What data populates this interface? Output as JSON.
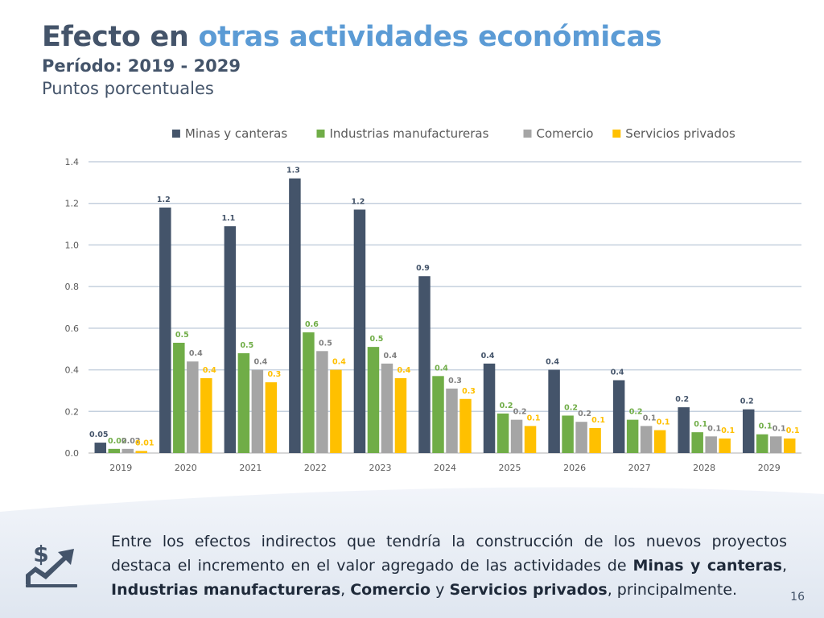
{
  "header": {
    "title_prefix": "Efecto en ",
    "title_accent": "otras actividades económicas",
    "subtitle": "Período: 2019 - 2029",
    "units": "Puntos porcentuales"
  },
  "chart_data": {
    "type": "bar",
    "categories": [
      "2019",
      "2020",
      "2021",
      "2022",
      "2023",
      "2024",
      "2025",
      "2026",
      "2027",
      "2028",
      "2029"
    ],
    "series": [
      {
        "name": "Minas y canteras",
        "color": "#44546a",
        "values": [
          0.05,
          1.18,
          1.09,
          1.32,
          1.17,
          0.85,
          0.43,
          0.4,
          0.35,
          0.22,
          0.21
        ],
        "labels": [
          "0.05",
          "1.2",
          "1.1",
          "1.3",
          "1.2",
          "0.9",
          "0.4",
          "0.4",
          "0.4",
          "0.2",
          "0.2"
        ],
        "label_color": "#44546a"
      },
      {
        "name": "Industrias manufactureras",
        "color": "#70ad47",
        "values": [
          0.02,
          0.53,
          0.48,
          0.58,
          0.51,
          0.37,
          0.19,
          0.18,
          0.16,
          0.1,
          0.09
        ],
        "labels": [
          "0.02",
          "0.5",
          "0.5",
          "0.6",
          "0.5",
          "0.4",
          "0.2",
          "0.2",
          "0.2",
          "0.1",
          "0.1"
        ],
        "label_color": "#70ad47"
      },
      {
        "name": "Comercio",
        "color": "#a5a5a5",
        "values": [
          0.02,
          0.44,
          0.4,
          0.49,
          0.43,
          0.31,
          0.16,
          0.15,
          0.13,
          0.08,
          0.08
        ],
        "labels": [
          "0.02",
          "0.4",
          "0.4",
          "0.5",
          "0.4",
          "0.3",
          "0.2",
          "0.2",
          "0.1",
          "0.1",
          "0.1"
        ],
        "label_color": "#7f7f7f"
      },
      {
        "name": "Servicios privados",
        "color": "#ffc000",
        "values": [
          0.01,
          0.36,
          0.34,
          0.4,
          0.36,
          0.26,
          0.13,
          0.12,
          0.11,
          0.07,
          0.07
        ],
        "labels": [
          "0.01",
          "0.4",
          "0.3",
          "0.4",
          "0.4",
          "0.3",
          "0.1",
          "0.1",
          "0.1",
          "0.1",
          "0.1"
        ],
        "label_color": "#ffc000"
      }
    ],
    "ylim": [
      0,
      1.4
    ],
    "yticks": [
      "0.0",
      "0.2",
      "0.4",
      "0.6",
      "0.8",
      "1.0",
      "1.2",
      "1.4"
    ],
    "legend_position": "top",
    "grid": true
  },
  "footer": {
    "text_1": "Entre los efectos indirectos que tendría la construcción de los nuevos proyectos destaca el incremento en el valor agregado de las actividades de ",
    "bold_1": "Minas y canteras",
    "text_2": ", ",
    "bold_2": "Industrias manufactureras",
    "text_3": ", ",
    "bold_3": "Comercio",
    "text_4": " y ",
    "bold_4": "Servicios privados",
    "text_5": ", principalmente.",
    "page_number": "16",
    "icon": "money-growth-icon"
  }
}
